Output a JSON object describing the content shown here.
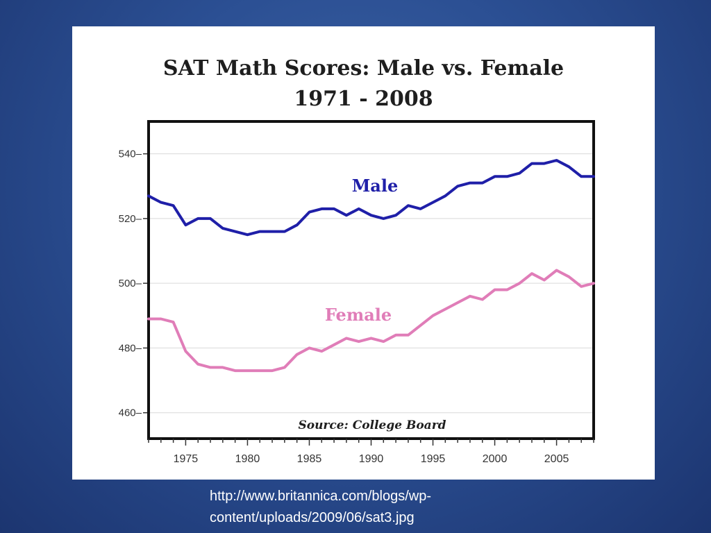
{
  "slide": {
    "caption": "http://www.britannica.com/blogs/wp-content/uploads/2009/06/sat3.jpg",
    "caption_line1": "http://www.britannica.com/blogs/wp-",
    "caption_line2": "content/uploads/2009/06/sat3.jpg"
  },
  "chart_data": {
    "type": "line",
    "title": "SAT Math Scores: Male vs. Female",
    "subtitle": "1971 - 2008",
    "source_note": "Source: College Board",
    "x": [
      1972,
      1973,
      1974,
      1975,
      1976,
      1977,
      1978,
      1979,
      1980,
      1981,
      1982,
      1983,
      1984,
      1985,
      1986,
      1987,
      1988,
      1989,
      1990,
      1991,
      1992,
      1993,
      1994,
      1995,
      1996,
      1997,
      1998,
      1999,
      2000,
      2001,
      2002,
      2003,
      2004,
      2005,
      2006,
      2007,
      2008
    ],
    "xlim": [
      1972,
      2008
    ],
    "ylim": [
      452,
      550
    ],
    "x_ticks": [
      1975,
      1980,
      1985,
      1990,
      1995,
      2000,
      2005
    ],
    "y_ticks": [
      460,
      480,
      500,
      520,
      540
    ],
    "grid": true,
    "colors": {
      "male": "#1f1fa8",
      "female": "#e07db8",
      "grid": "#d9d9d9",
      "frame": "#111111"
    },
    "series": [
      {
        "name": "Male",
        "values": [
          527,
          525,
          524,
          518,
          520,
          520,
          517,
          516,
          515,
          516,
          516,
          516,
          518,
          522,
          523,
          523,
          521,
          523,
          521,
          520,
          521,
          524,
          523,
          525,
          527,
          530,
          531,
          531,
          533,
          533,
          534,
          537,
          537,
          538,
          536,
          533,
          533
        ]
      },
      {
        "name": "Female",
        "values": [
          489,
          489,
          488,
          479,
          475,
          474,
          474,
          473,
          473,
          473,
          473,
          474,
          478,
          480,
          479,
          481,
          483,
          482,
          483,
          482,
          484,
          484,
          487,
          490,
          492,
          494,
          496,
          495,
          498,
          498,
          500,
          503,
          501,
          504,
          502,
          499,
          500
        ]
      }
    ],
    "series_labels": {
      "male": "Male",
      "female": "Female"
    }
  }
}
